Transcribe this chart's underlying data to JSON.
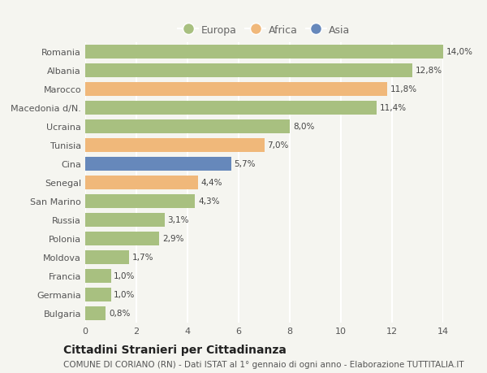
{
  "categories": [
    "Romania",
    "Albania",
    "Marocco",
    "Macedonia d/N.",
    "Ucraina",
    "Tunisia",
    "Cina",
    "Senegal",
    "San Marino",
    "Russia",
    "Polonia",
    "Moldova",
    "Francia",
    "Germania",
    "Bulgaria"
  ],
  "values": [
    14.0,
    12.8,
    11.8,
    11.4,
    8.0,
    7.0,
    5.7,
    4.4,
    4.3,
    3.1,
    2.9,
    1.7,
    1.0,
    1.0,
    0.8
  ],
  "labels": [
    "14,0%",
    "12,8%",
    "11,8%",
    "11,4%",
    "8,0%",
    "7,0%",
    "5,7%",
    "4,4%",
    "4,3%",
    "3,1%",
    "2,9%",
    "1,7%",
    "1,0%",
    "1,0%",
    "0,8%"
  ],
  "continent": [
    "Europa",
    "Europa",
    "Africa",
    "Europa",
    "Europa",
    "Africa",
    "Asia",
    "Africa",
    "Europa",
    "Europa",
    "Europa",
    "Europa",
    "Europa",
    "Europa",
    "Europa"
  ],
  "colors": {
    "Europa": "#a8c080",
    "Africa": "#f0b87a",
    "Asia": "#6688bb"
  },
  "title": "Cittadini Stranieri per Cittadinanza",
  "subtitle": "COMUNE DI CORIANO (RN) - Dati ISTAT al 1° gennaio di ogni anno - Elaborazione TUTTITALIA.IT",
  "xlim": [
    0,
    14
  ],
  "xticks": [
    0,
    2,
    4,
    6,
    8,
    10,
    12,
    14
  ],
  "background_color": "#f5f5f0",
  "bar_height": 0.72,
  "grid_color": "#ffffff",
  "title_fontsize": 10,
  "subtitle_fontsize": 7.5,
  "label_fontsize": 7.5,
  "tick_fontsize": 8,
  "legend_fontsize": 9
}
